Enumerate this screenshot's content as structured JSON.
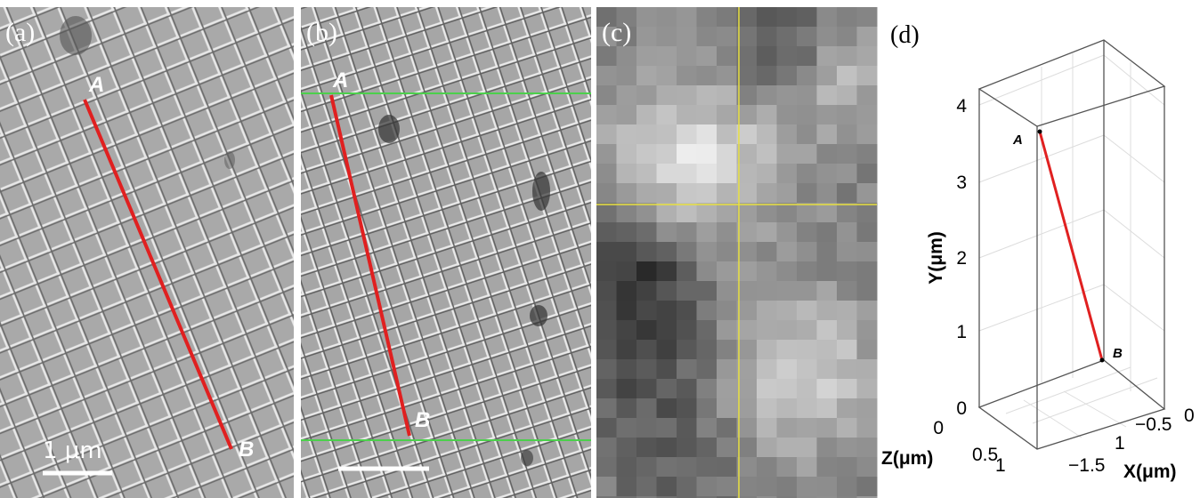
{
  "panels": [
    {
      "label": "(a)",
      "points": [
        "A",
        "B"
      ],
      "scale_bar": "1 μm"
    },
    {
      "label": "(b)",
      "points": [
        "A",
        "B"
      ]
    },
    {
      "label": "(c)"
    },
    {
      "label": "(d)",
      "points": [
        "A",
        "B"
      ],
      "axes": {
        "y": {
          "label": "Y(μm)",
          "ticks": [
            "4",
            "3",
            "2",
            "1",
            "0"
          ]
        },
        "z": {
          "label": "Z(μm)",
          "ticks": [
            "0",
            "0.5",
            "1"
          ]
        },
        "x": {
          "label": "X(μm)",
          "ticks": [
            "−1.5",
            "1",
            "−0.5",
            "0"
          ]
        }
      }
    }
  ]
}
